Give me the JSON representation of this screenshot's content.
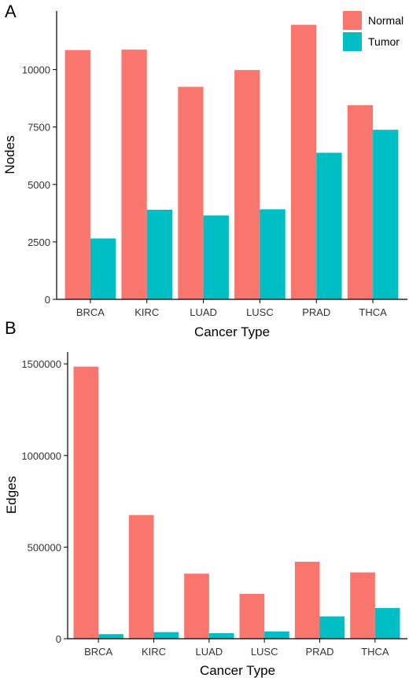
{
  "figure": {
    "legend": {
      "entries": [
        {
          "label": "Normal",
          "color": "#F8766D"
        },
        {
          "label": "Tumor",
          "color": "#00BFC4"
        }
      ]
    }
  },
  "chart_data": [
    {
      "type": "bar",
      "panel_label": "A",
      "categories": [
        "BRCA",
        "KIRC",
        "LUAD",
        "LUSC",
        "PRAD",
        "THCA"
      ],
      "series": [
        {
          "name": "Normal",
          "color": "#F8766D",
          "values": [
            10850,
            10870,
            9250,
            9980,
            11950,
            8450
          ]
        },
        {
          "name": "Tumor",
          "color": "#00BFC4",
          "values": [
            2650,
            3900,
            3650,
            3920,
            6380,
            7380
          ]
        }
      ],
      "xlabel": "Cancer Type",
      "ylabel": "Nodes",
      "yticks": [
        0,
        2500,
        5000,
        7500,
        10000
      ],
      "ytick_labels": [
        "0",
        "2500",
        "5000",
        "7500",
        "10000"
      ],
      "ylim": [
        0,
        12550
      ],
      "grid": false,
      "legend_position": "top-right"
    },
    {
      "type": "bar",
      "panel_label": "B",
      "categories": [
        "BRCA",
        "KIRC",
        "LUAD",
        "LUSC",
        "PRAD",
        "THCA"
      ],
      "series": [
        {
          "name": "Normal",
          "color": "#F8766D",
          "values": [
            1485000,
            675000,
            355000,
            245000,
            420000,
            362000
          ]
        },
        {
          "name": "Tumor",
          "color": "#00BFC4",
          "values": [
            25000,
            36000,
            30000,
            40000,
            122000,
            168000
          ]
        }
      ],
      "xlabel": "Cancer Type",
      "ylabel": "Edges",
      "yticks": [
        0,
        500000,
        1000000,
        1500000
      ],
      "ytick_labels": [
        "0",
        "500000",
        "1000000",
        "1500000"
      ],
      "ylim": [
        0,
        1565000
      ],
      "grid": false
    }
  ]
}
